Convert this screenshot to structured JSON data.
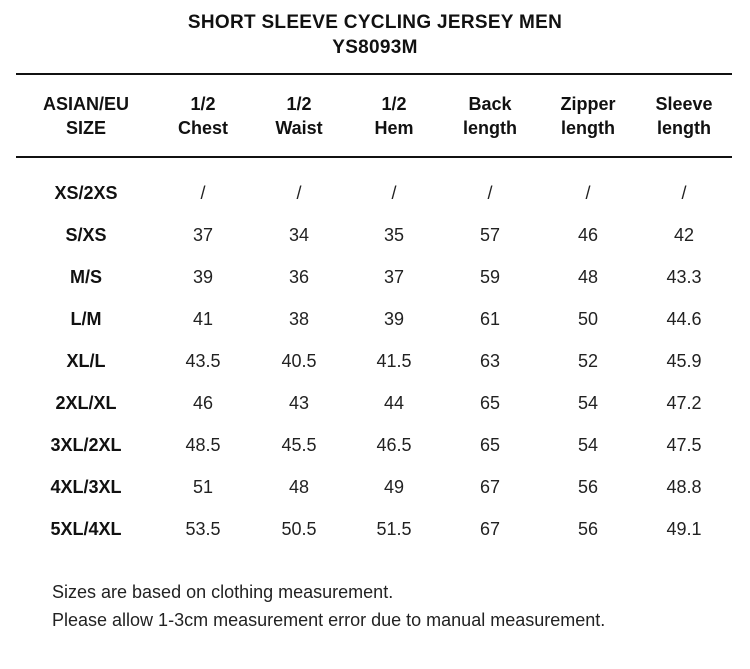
{
  "title": {
    "line1": "SHORT SLEEVE CYCLING JERSEY MEN",
    "line2": "YS8093M"
  },
  "table": {
    "headers": [
      "ASIAN/EU\nSIZE",
      "1/2\nChest",
      "1/2\nWaist",
      "1/2\nHem",
      "Back\nlength",
      "Zipper\nlength",
      "Sleeve\nlength"
    ],
    "rows": [
      [
        "XS/2XS",
        "/",
        "/",
        "/",
        "/",
        "/",
        "/"
      ],
      [
        "S/XS",
        "37",
        "34",
        "35",
        "57",
        "46",
        "42"
      ],
      [
        "M/S",
        "39",
        "36",
        "37",
        "59",
        "48",
        "43.3"
      ],
      [
        "L/M",
        "41",
        "38",
        "39",
        "61",
        "50",
        "44.6"
      ],
      [
        "XL/L",
        "43.5",
        "40.5",
        "41.5",
        "63",
        "52",
        "45.9"
      ],
      [
        "2XL/XL",
        "46",
        "43",
        "44",
        "65",
        "54",
        "47.2"
      ],
      [
        "3XL/2XL",
        "48.5",
        "45.5",
        "46.5",
        "65",
        "54",
        "47.5"
      ],
      [
        "4XL/3XL",
        "51",
        "48",
        "49",
        "67",
        "56",
        "48.8"
      ],
      [
        "5XL/4XL",
        "53.5",
        "50.5",
        "51.5",
        "67",
        "56",
        "49.1"
      ]
    ]
  },
  "notes": [
    "Sizes are based on clothing measurement.",
    "Please allow 1-3cm measurement error due to manual measurement."
  ]
}
